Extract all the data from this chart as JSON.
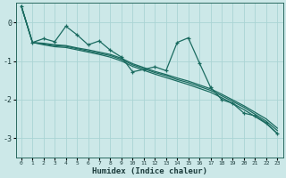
{
  "xlabel": "Humidex (Indice chaleur)",
  "background_color": "#cce8e8",
  "grid_color": "#aad4d4",
  "line_color": "#1a6b60",
  "xlim": [
    -0.5,
    23.5
  ],
  "ylim": [
    -3.5,
    0.5
  ],
  "yticks": [
    0,
    -1,
    -2,
    -3
  ],
  "xticks": [
    0,
    1,
    2,
    3,
    4,
    5,
    6,
    7,
    8,
    9,
    10,
    11,
    12,
    13,
    14,
    15,
    16,
    17,
    18,
    19,
    20,
    21,
    22,
    23
  ],
  "series_jagged": {
    "x": [
      0,
      1,
      2,
      3,
      4,
      5,
      6,
      7,
      8,
      9,
      10,
      11,
      12,
      13,
      14,
      15,
      16,
      17,
      18,
      19,
      20,
      21,
      22,
      23
    ],
    "y": [
      0.42,
      -0.52,
      -0.42,
      -0.5,
      -0.1,
      -0.32,
      -0.58,
      -0.48,
      -0.72,
      -0.9,
      -1.28,
      -1.22,
      -1.15,
      -1.25,
      -0.52,
      -0.4,
      -1.05,
      -1.68,
      -2.0,
      -2.1,
      -2.35,
      -2.42,
      -2.6,
      -2.88
    ]
  },
  "band1": {
    "x": [
      0,
      1,
      2,
      3,
      4,
      5,
      6,
      7,
      8,
      9,
      10,
      11,
      12,
      13,
      14,
      15,
      16,
      17,
      18,
      19,
      20,
      21,
      22,
      23
    ],
    "y": [
      0.42,
      -0.52,
      -0.56,
      -0.6,
      -0.62,
      -0.68,
      -0.74,
      -0.8,
      -0.86,
      -0.96,
      -1.1,
      -1.2,
      -1.3,
      -1.38,
      -1.48,
      -1.56,
      -1.66,
      -1.76,
      -1.9,
      -2.05,
      -2.2,
      -2.38,
      -2.56,
      -2.8
    ]
  },
  "band2": {
    "x": [
      0,
      1,
      2,
      3,
      4,
      5,
      6,
      7,
      8,
      9,
      10,
      11,
      12,
      13,
      14,
      15,
      16,
      17,
      18,
      19,
      20,
      21,
      22,
      23
    ],
    "y": [
      0.42,
      -0.52,
      -0.58,
      -0.63,
      -0.65,
      -0.71,
      -0.77,
      -0.83,
      -0.9,
      -1.0,
      -1.14,
      -1.24,
      -1.34,
      -1.43,
      -1.52,
      -1.61,
      -1.71,
      -1.81,
      -1.95,
      -2.1,
      -2.26,
      -2.44,
      -2.62,
      -2.88
    ]
  },
  "band3": {
    "x": [
      0,
      1,
      2,
      3,
      4,
      5,
      6,
      7,
      8,
      9,
      10,
      11,
      12,
      13,
      14,
      15,
      16,
      17,
      18,
      19,
      20,
      21,
      22,
      23
    ],
    "y": [
      0.42,
      -0.52,
      -0.54,
      -0.58,
      -0.6,
      -0.66,
      -0.71,
      -0.77,
      -0.83,
      -0.93,
      -1.07,
      -1.17,
      -1.27,
      -1.35,
      -1.44,
      -1.52,
      -1.62,
      -1.72,
      -1.86,
      -2.01,
      -2.16,
      -2.33,
      -2.5,
      -2.74
    ]
  }
}
